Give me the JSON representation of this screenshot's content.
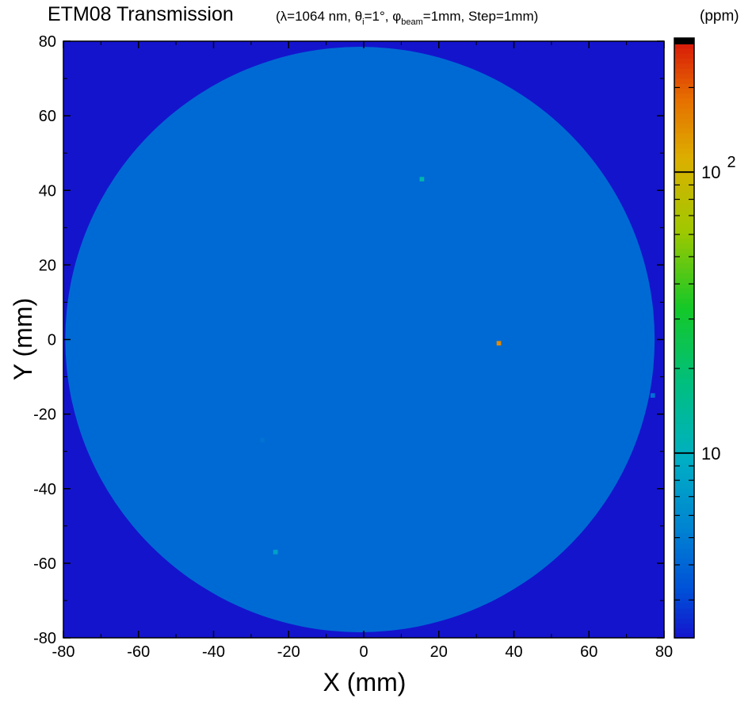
{
  "chart_data": {
    "type": "heatmap",
    "title": "ETM08 Transmission",
    "subtitle_parts": {
      "open": "(λ=1064 nm, θ",
      "theta_sub": "i",
      "mid": "=1°, φ",
      "phi_sub": "beam",
      "close": "=1mm, Step=1mm)"
    },
    "colorbar_unit": "(ppm)",
    "xlabel": "X (mm)",
    "ylabel": "Y (mm)",
    "xlim": [
      -80,
      80
    ],
    "ylim": [
      -80,
      80
    ],
    "xticks": [
      "-80",
      "-60",
      "-40",
      "-20",
      "0",
      "20",
      "40",
      "60",
      "80"
    ],
    "yticks": [
      "80",
      "60",
      "40",
      "20",
      "0",
      "-20",
      "-40",
      "-60",
      "-80"
    ],
    "colorbar": {
      "scale": "log",
      "range": [
        2.2,
        300
      ],
      "labeled_ticks": [
        {
          "value": 10,
          "label": "10"
        },
        {
          "value": 100,
          "label": "10",
          "sup": "2"
        }
      ]
    },
    "background_value": 2.2,
    "disk": {
      "center": [
        -1,
        0
      ],
      "radius": 78.5,
      "value": 4.2
    },
    "features": [
      {
        "x": 15.5,
        "y": 43,
        "value": 12
      },
      {
        "x": 36,
        "y": -1,
        "value": 150
      },
      {
        "x": -23.5,
        "y": -57,
        "value": 8
      },
      {
        "x": -27,
        "y": -27,
        "value": 4.6
      },
      {
        "x": 77,
        "y": -15,
        "value": 4.5
      }
    ]
  }
}
